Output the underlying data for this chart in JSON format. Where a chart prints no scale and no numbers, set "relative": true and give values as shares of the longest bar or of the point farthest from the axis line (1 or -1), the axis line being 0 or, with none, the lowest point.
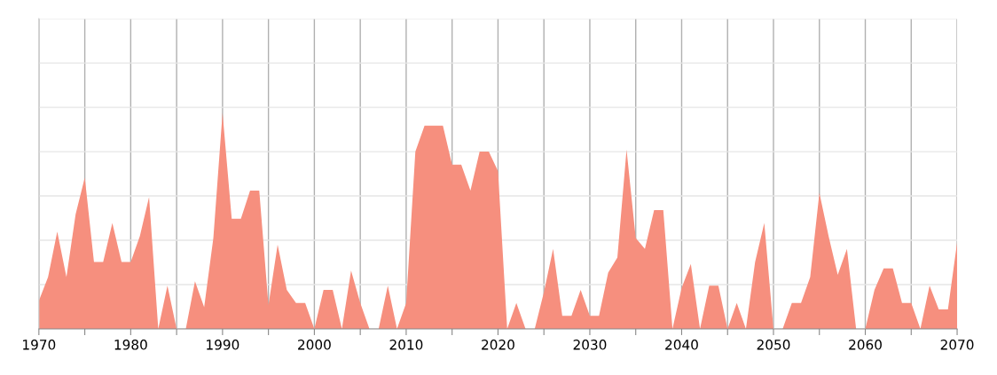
{
  "chart_data": {
    "type": "area",
    "relative": true,
    "grid": true,
    "color": "#f68f7e",
    "x": [
      1970,
      1971,
      1972,
      1973,
      1974,
      1975,
      1976,
      1977,
      1978,
      1979,
      1980,
      1981,
      1982,
      1983,
      1984,
      1985,
      1986,
      1987,
      1988,
      1989,
      1990,
      1991,
      1992,
      1993,
      1994,
      1995,
      1996,
      1997,
      1998,
      1999,
      2000,
      2001,
      2002,
      2003,
      2004,
      2005,
      2006,
      2007,
      2008,
      2009,
      2010,
      2011,
      2012,
      2013,
      2014,
      2015,
      2016,
      2017,
      2018,
      2019,
      2020,
      2021,
      2022,
      2023,
      2024,
      2025,
      2026,
      2027,
      2028,
      2029,
      2030,
      2031,
      2032,
      2033,
      2034,
      2035,
      2036,
      2037,
      2038,
      2039,
      2040,
      2041,
      2042,
      2043,
      2044,
      2045,
      2046,
      2047,
      2048,
      2049,
      2050,
      2051,
      2052,
      2053,
      2054,
      2055,
      2056,
      2057,
      2058,
      2059,
      2060,
      2061,
      2062,
      2063,
      2064,
      2065,
      2066,
      2067,
      2068,
      2069,
      2070
    ],
    "values": [
      0.13,
      0.24,
      0.45,
      0.24,
      0.53,
      0.7,
      0.31,
      0.31,
      0.49,
      0.31,
      0.31,
      0.43,
      0.61,
      0,
      0.2,
      0,
      0,
      0.22,
      0.1,
      0.42,
      1,
      0.51,
      0.51,
      0.64,
      0.64,
      0.11,
      0.39,
      0.18,
      0.12,
      0.12,
      0,
      0.18,
      0.18,
      0,
      0.27,
      0.12,
      0,
      0,
      0.2,
      0,
      0.12,
      0.82,
      0.94,
      0.94,
      0.94,
      0.76,
      0.76,
      0.64,
      0.82,
      0.82,
      0.73,
      0,
      0.12,
      0,
      0,
      0.17,
      0.37,
      0.06,
      0.06,
      0.18,
      0.06,
      0.06,
      0.26,
      0.33,
      0.83,
      0.42,
      0.37,
      0.55,
      0.55,
      0,
      0.19,
      0.3,
      0,
      0.2,
      0.2,
      0,
      0.12,
      0,
      0.31,
      0.49,
      0,
      0,
      0.12,
      0.12,
      0.24,
      0.63,
      0.43,
      0.25,
      0.37,
      0,
      0,
      0.18,
      0.28,
      0.28,
      0.12,
      0.12,
      0,
      0.2,
      0.09,
      0.09,
      0.4
    ],
    "xlim": [
      1970,
      2070
    ],
    "xticks": [
      1970,
      {
        "value": 1975,
        "label": null
      },
      1980,
      {
        "value": 1985,
        "label": null
      },
      1990,
      {
        "value": 1995,
        "label": null
      },
      2000,
      {
        "value": 2005,
        "label": null
      },
      2010,
      {
        "value": 2015,
        "label": null
      },
      2020,
      {
        "value": 2025,
        "label": null
      },
      2030,
      {
        "value": 2035,
        "label": null
      },
      2040,
      {
        "value": 2045,
        "label": null
      },
      2050,
      {
        "value": 2055,
        "label": null
      },
      2060,
      {
        "value": 2065,
        "label": null
      },
      2070
    ]
  }
}
